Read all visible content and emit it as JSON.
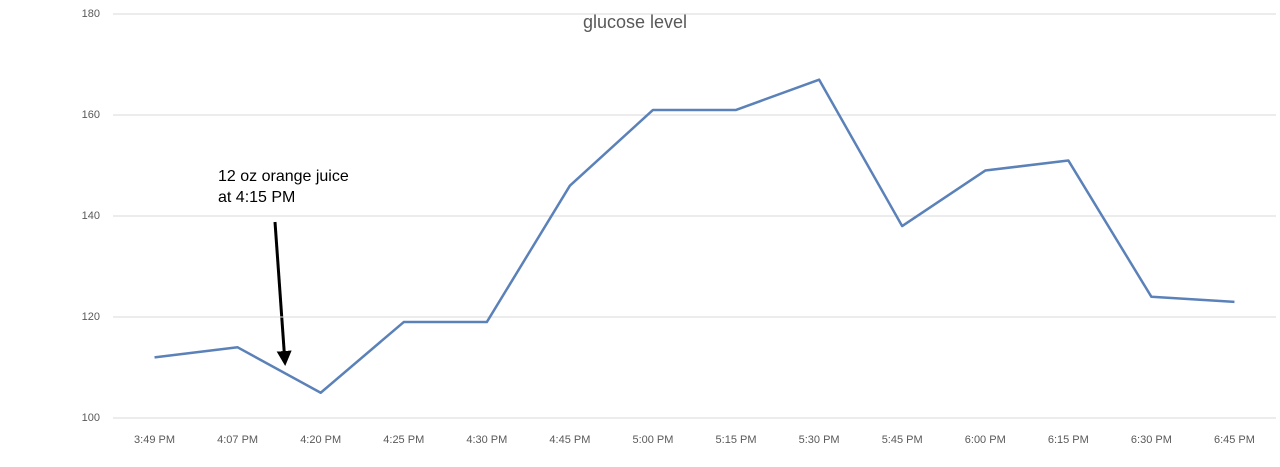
{
  "chart_data": {
    "type": "line",
    "title": "glucose level",
    "categories": [
      "3:49 PM",
      "4:07 PM",
      "4:20 PM",
      "4:25 PM",
      "4:30 PM",
      "4:45 PM",
      "5:00 PM",
      "5:15 PM",
      "5:30 PM",
      "5:45 PM",
      "6:00 PM",
      "6:15 PM",
      "6:30 PM",
      "6:45 PM"
    ],
    "series": [
      {
        "name": "glucose level",
        "color": "#5b81b9",
        "values": [
          112,
          114,
          105,
          119,
          119,
          146,
          161,
          161,
          167,
          138,
          149,
          151,
          124,
          123
        ]
      }
    ],
    "ylim": [
      100,
      180
    ],
    "yticks": [
      100,
      120,
      140,
      160,
      180
    ],
    "grid": true,
    "annotation": [
      "12 oz orange juice",
      "at 4:15 PM"
    ]
  }
}
